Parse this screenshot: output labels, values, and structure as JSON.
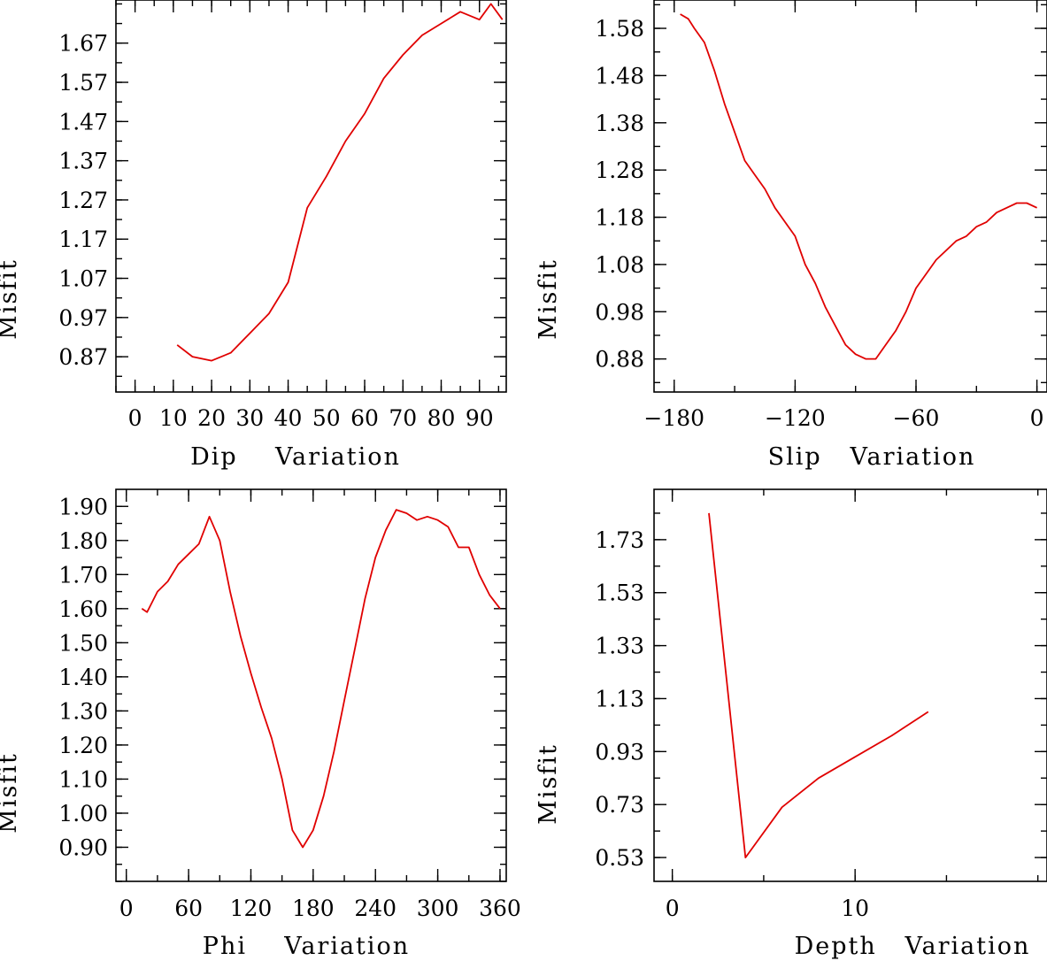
{
  "chart_data": [
    {
      "type": "line",
      "id": "dip",
      "xlabel": "Dip    Variation",
      "ylabel": "Misfit",
      "xlim": [
        -5,
        97
      ],
      "ylim": [
        0.78,
        1.78
      ],
      "xticks": [
        "0",
        "10",
        "20",
        "30",
        "40",
        "50",
        "60",
        "70",
        "80",
        "90"
      ],
      "xtick_values": [
        0,
        10,
        20,
        30,
        40,
        50,
        60,
        70,
        80,
        90
      ],
      "yticks": [
        "0.87",
        "0.97",
        "1.07",
        "1.17",
        "1.27",
        "1.37",
        "1.47",
        "1.57",
        "1.67"
      ],
      "ytick_values": [
        0.87,
        0.97,
        1.07,
        1.17,
        1.27,
        1.37,
        1.47,
        1.57,
        1.67
      ],
      "x": [
        11,
        15,
        20,
        25,
        30,
        35,
        40,
        45,
        50,
        55,
        60,
        65,
        70,
        75,
        80,
        85,
        90,
        93,
        96
      ],
      "values": [
        0.9,
        0.87,
        0.86,
        0.88,
        0.93,
        0.98,
        1.06,
        1.25,
        1.33,
        1.42,
        1.49,
        1.58,
        1.64,
        1.69,
        1.72,
        1.75,
        1.73,
        1.77,
        1.73
      ]
    },
    {
      "type": "line",
      "id": "slip",
      "xlabel": "Slip   Variation",
      "ylabel": "Misfit",
      "xlim": [
        -190,
        5
      ],
      "ylim": [
        0.81,
        1.64
      ],
      "xticks": [
        "−180",
        "−120",
        "−60",
        "0"
      ],
      "xtick_values": [
        -180,
        -120,
        -60,
        0
      ],
      "yticks": [
        "0.88",
        "0.98",
        "1.08",
        "1.18",
        "1.28",
        "1.38",
        "1.48",
        "1.58"
      ],
      "ytick_values": [
        0.88,
        0.98,
        1.08,
        1.18,
        1.28,
        1.38,
        1.48,
        1.58
      ],
      "x": [
        -177,
        -173,
        -170,
        -165,
        -160,
        -155,
        -150,
        -145,
        -140,
        -135,
        -130,
        -125,
        -120,
        -115,
        -110,
        -105,
        -100,
        -95,
        -90,
        -85,
        -80,
        -75,
        -70,
        -65,
        -60,
        -55,
        -50,
        -45,
        -40,
        -35,
        -30,
        -25,
        -20,
        -15,
        -10,
        -5,
        0
      ],
      "values": [
        1.61,
        1.6,
        1.58,
        1.55,
        1.49,
        1.42,
        1.36,
        1.3,
        1.27,
        1.24,
        1.2,
        1.17,
        1.14,
        1.08,
        1.04,
        0.99,
        0.95,
        0.91,
        0.89,
        0.88,
        0.88,
        0.91,
        0.94,
        0.98,
        1.03,
        1.06,
        1.09,
        1.11,
        1.13,
        1.14,
        1.16,
        1.17,
        1.19,
        1.2,
        1.21,
        1.21,
        1.2
      ]
    },
    {
      "type": "line",
      "id": "phi",
      "xlabel": "Phi    Variation",
      "ylabel": "Misfit",
      "xlim": [
        -10,
        366
      ],
      "ylim": [
        0.8,
        1.95
      ],
      "xticks": [
        "0",
        "60",
        "120",
        "180",
        "240",
        "300",
        "360"
      ],
      "xtick_values": [
        0,
        60,
        120,
        180,
        240,
        300,
        360
      ],
      "yticks": [
        "0.90",
        "1.00",
        "1.10",
        "1.20",
        "1.30",
        "1.40",
        "1.50",
        "1.60",
        "1.70",
        "1.80",
        "1.90"
      ],
      "ytick_values": [
        0.9,
        1.0,
        1.1,
        1.2,
        1.3,
        1.4,
        1.5,
        1.6,
        1.7,
        1.8,
        1.9
      ],
      "x": [
        15,
        20,
        25,
        30,
        40,
        50,
        60,
        70,
        80,
        90,
        100,
        110,
        120,
        130,
        140,
        150,
        160,
        170,
        180,
        190,
        200,
        210,
        220,
        230,
        240,
        250,
        260,
        270,
        280,
        290,
        300,
        310,
        320,
        330,
        340,
        350,
        360
      ],
      "values": [
        1.6,
        1.59,
        1.62,
        1.65,
        1.68,
        1.73,
        1.76,
        1.79,
        1.87,
        1.8,
        1.65,
        1.52,
        1.41,
        1.31,
        1.22,
        1.1,
        0.95,
        0.9,
        0.95,
        1.05,
        1.18,
        1.33,
        1.48,
        1.63,
        1.75,
        1.83,
        1.89,
        1.88,
        1.86,
        1.87,
        1.86,
        1.84,
        1.78,
        1.78,
        1.7,
        1.64,
        1.6
      ]
    },
    {
      "type": "line",
      "id": "depth",
      "xlabel": "Depth   Variation",
      "ylabel": "Misfit",
      "xlim": [
        -1,
        20.5
      ],
      "ylim": [
        0.44,
        1.92
      ],
      "xticks": [
        "0",
        "10"
      ],
      "xtick_values": [
        0,
        10
      ],
      "yticks": [
        "0.53",
        "0.73",
        "0.93",
        "1.13",
        "1.33",
        "1.53",
        "1.73"
      ],
      "ytick_values": [
        0.53,
        0.73,
        0.93,
        1.13,
        1.33,
        1.53,
        1.73
      ],
      "x": [
        2,
        4,
        6,
        8,
        10,
        12,
        14
      ],
      "values": [
        1.83,
        0.53,
        0.72,
        0.83,
        0.91,
        0.99,
        1.08
      ]
    }
  ],
  "colors": {
    "line": "#e00000",
    "axes": "#000000",
    "background": "#ffffff"
  }
}
